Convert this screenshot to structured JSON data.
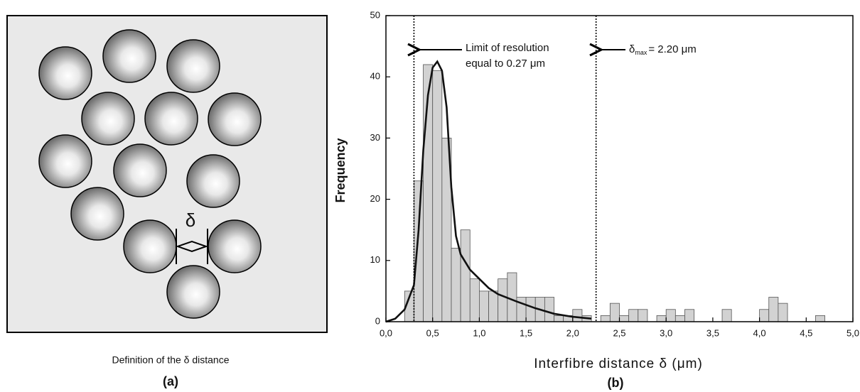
{
  "diagram": {
    "symbol": "δ",
    "caption": "Definition of the δ distance",
    "panel_label": "(a)"
  },
  "chart_data": {
    "type": "histogram",
    "panel_label": "(b)",
    "x_label": "Interfibre distance δ (μm)",
    "y_label": "Frequency",
    "bins": [
      0.2,
      0.3,
      0.4,
      0.5,
      0.6,
      0.7,
      0.8,
      0.9,
      1.0,
      1.1,
      1.2,
      1.3,
      1.4,
      1.5,
      1.6,
      1.7,
      1.8,
      1.9,
      2.0,
      2.1,
      2.2,
      2.3,
      2.4,
      2.5,
      2.6,
      2.7,
      2.8,
      2.9,
      3.0,
      3.1,
      3.2,
      3.3,
      3.4,
      3.5,
      3.6,
      3.7,
      3.8,
      3.9,
      4.0,
      4.1,
      4.2,
      4.3,
      4.4,
      4.5,
      4.6,
      4.7
    ],
    "values": [
      5,
      23,
      42,
      41,
      30,
      12,
      15,
      7,
      5,
      5,
      7,
      8,
      4,
      4,
      4,
      4,
      1,
      1,
      2,
      1,
      0,
      1,
      3,
      1,
      2,
      2,
      0,
      1,
      2,
      1,
      2,
      0,
      0,
      0,
      2,
      0,
      0,
      0,
      2,
      4,
      3,
      0,
      0,
      0,
      1
    ],
    "color": "#d2d2d2",
    "fit": {
      "color": "#111111",
      "x": [
        0,
        0.1,
        0.2,
        0.3,
        0.35,
        0.4,
        0.45,
        0.5,
        0.55,
        0.6,
        0.65,
        0.7,
        0.75,
        0.8,
        0.9,
        1.0,
        1.1,
        1.2,
        1.4,
        1.6,
        1.8,
        2.0,
        2.2
      ],
      "y": [
        0,
        0.5,
        2,
        6,
        15,
        28,
        37,
        41.5,
        42.5,
        41,
        35,
        22,
        14,
        11,
        8.5,
        7,
        5.5,
        4.5,
        3.3,
        2.2,
        1.3,
        0.8,
        0.5
      ]
    },
    "vlines": [
      0.3,
      2.25
    ],
    "annotations": {
      "resolution": [
        "Limit of resolution",
        "equal to 0.27 μm"
      ],
      "delta": "δ",
      "delta_sub": "max",
      "delta_rest": "= 2.20 μm"
    },
    "xlim": [
      0,
      5
    ],
    "ylim": [
      0,
      50
    ],
    "xticks": [
      {
        "value": 0,
        "label": "0,0"
      },
      {
        "value": 0.5,
        "label": "0,5"
      },
      {
        "value": 1,
        "label": "1,0"
      },
      {
        "value": 1.5,
        "label": "1,5"
      },
      {
        "value": 2,
        "label": "2,0"
      },
      {
        "value": 2.5,
        "label": "2,5"
      },
      {
        "value": 3,
        "label": "3,0"
      },
      {
        "value": 3.5,
        "label": "3,5"
      },
      {
        "value": 4,
        "label": "4,0"
      },
      {
        "value": 4.5,
        "label": "4,5"
      },
      {
        "value": 5,
        "label": "5,0"
      }
    ],
    "yticks": [
      0,
      10,
      20,
      30,
      40,
      50
    ]
  }
}
